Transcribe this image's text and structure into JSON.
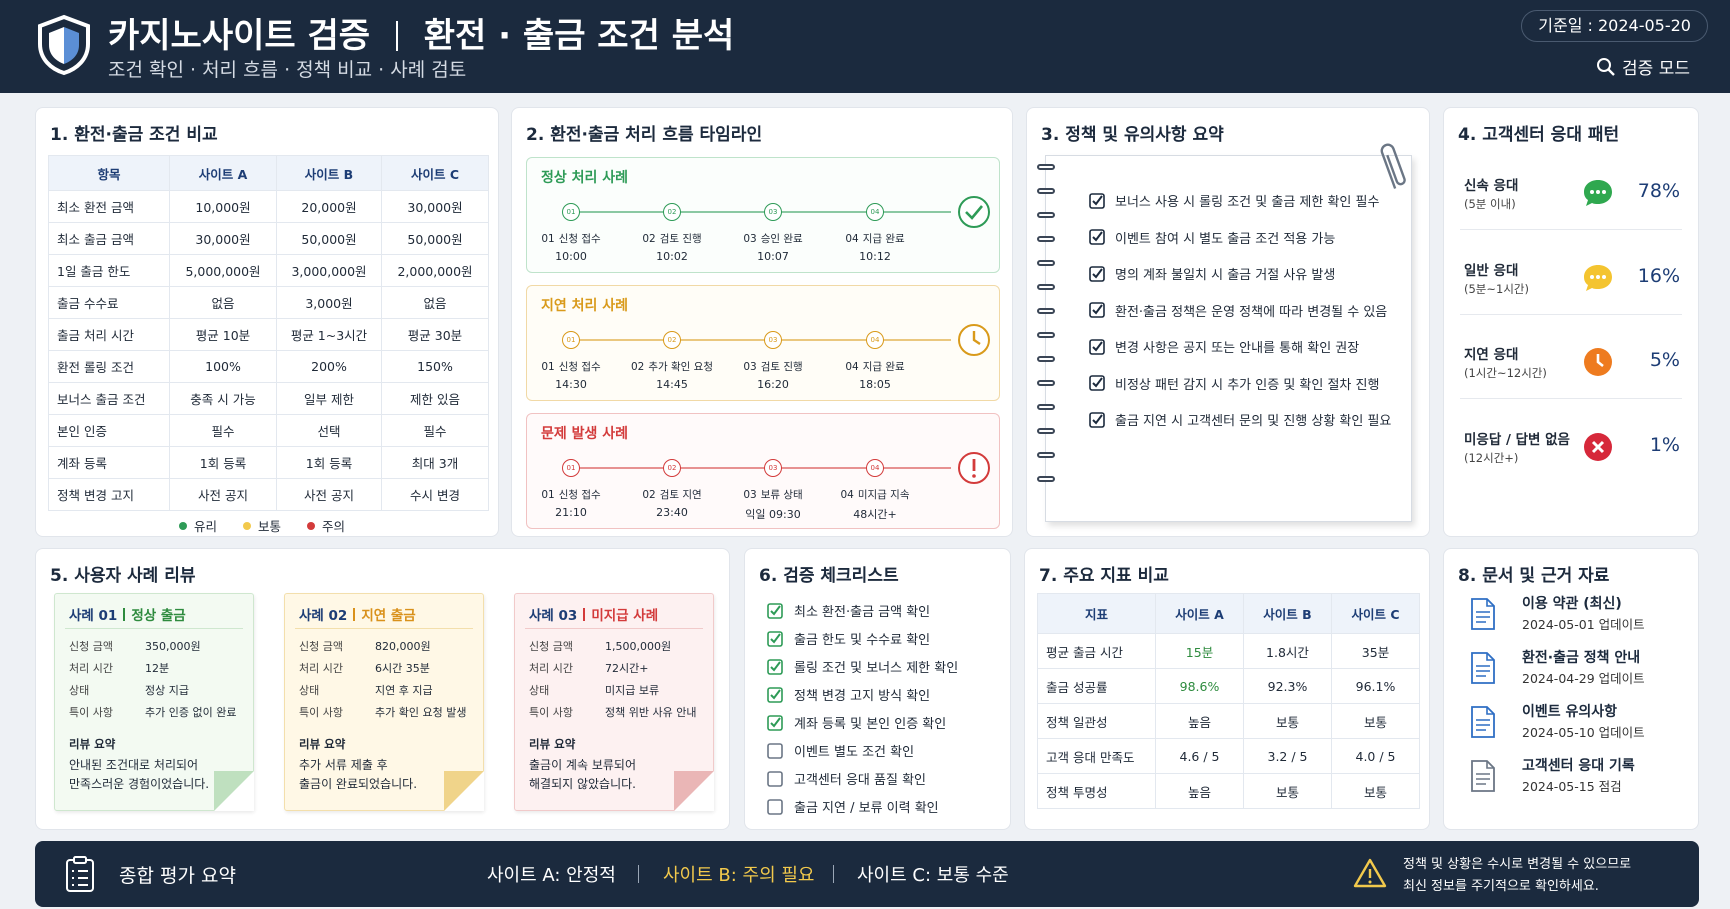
{
  "header": {
    "title": "카지노사이트 검증",
    "title2": "환전 · 출금 조건 분석",
    "subtitle": "조건 확인 · 처리 흐름 · 정책 비교 · 사례 검토",
    "date": "기준일 : 2024-05-20",
    "mode": "검증 모드"
  },
  "panel1": {
    "title": "1. 환전·출금 조건 비교",
    "table": {
      "header": [
        "항목",
        "사이트 A",
        "사이트 B",
        "사이트 C"
      ],
      "rows": [
        [
          "최소 환전 금액",
          "10,000원",
          "20,000원",
          "30,000원"
        ],
        [
          "최소 출금 금액",
          "30,000원",
          "50,000원",
          "50,000원"
        ],
        [
          "1일 출금 한도",
          "5,000,000원",
          "3,000,000원",
          "2,000,000원"
        ],
        [
          "출금 수수료",
          "없음",
          "3,000원",
          "없음"
        ],
        [
          "출금 처리 시간",
          "평균 10분",
          "평균 1~3시간",
          "평균 30분"
        ],
        [
          "환전 롤링 조건",
          "100%",
          "200%",
          "150%"
        ],
        [
          "보너스 출금 조건",
          "충족 시 가능",
          "일부 제한",
          "제한 있음"
        ],
        [
          "본인 인증",
          "필수",
          "선택",
          "필수"
        ],
        [
          "계좌 등록",
          "1회 등록",
          "1회 등록",
          "최대 3개"
        ],
        [
          "정책 변경 고지",
          "사전 공지",
          "사전 공지",
          "수시 변경"
        ]
      ]
    },
    "legend": [
      {
        "label": "유리",
        "color": "#2e9b57"
      },
      {
        "label": "보통",
        "color": "#f2c94c"
      },
      {
        "label": "주의",
        "color": "#d33b3b"
      }
    ]
  },
  "panel2": {
    "title": "2. 환전·출금 처리 흐름 타임라인",
    "cases": [
      {
        "title": "정상 처리 사례",
        "steps": [
          {
            "num": "01",
            "label": "신청 접수",
            "time": "10:00"
          },
          {
            "num": "02",
            "label": "검토 진행",
            "time": "10:02"
          },
          {
            "num": "03",
            "label": "승인 완료",
            "time": "10:07"
          },
          {
            "num": "04",
            "label": "지급 완료",
            "time": "10:12"
          }
        ]
      },
      {
        "title": "지연 처리 사례",
        "steps": [
          {
            "num": "01",
            "label": "신청 접수",
            "time": "14:30"
          },
          {
            "num": "02",
            "label": "추가 확인 요청",
            "time": "14:45"
          },
          {
            "num": "03",
            "label": "검토 진행",
            "time": "16:20"
          },
          {
            "num": "04",
            "label": "지급 완료",
            "time": "18:05"
          }
        ]
      },
      {
        "title": "문제 발생 사례",
        "steps": [
          {
            "num": "01",
            "label": "신청 접수",
            "time": "21:10"
          },
          {
            "num": "02",
            "label": "검토 지연",
            "time": "23:40"
          },
          {
            "num": "03",
            "label": "보류 상태",
            "time": "익일 09:30"
          },
          {
            "num": "04",
            "label": "미지급 지속",
            "time": "48시간+"
          }
        ]
      }
    ]
  },
  "panel3": {
    "title": "3. 정책 및 유의사항 요약",
    "items": [
      "보너스 사용 시 롤링 조건 및 출금 제한 확인 필수",
      "이벤트 참여 시 별도 출금 조건 적용 가능",
      "명의 계좌 불일치 시 출금 거절 사유 발생",
      "환전·출금 정책은 운영 정책에 따라 변경될 수 있음",
      "변경 사항은 공지 또는 안내를 통해 확인 권장",
      "비정상 패턴 감지 시 추가 인증 및 확인 절차 진행",
      "출금 지연 시 고객센터 문의 및 진행 상황 확인 필요"
    ]
  },
  "panel4": {
    "title": "4. 고객센터 응대 패턴",
    "items": [
      {
        "label": "신속 응대",
        "sub": "(5분 이내)",
        "pct": "78%"
      },
      {
        "label": "일반 응대",
        "sub": "(5분~1시간)",
        "pct": "16%"
      },
      {
        "label": "지연 응대",
        "sub": "(1시간~12시간)",
        "pct": "5%"
      },
      {
        "label": "미응답 / 답변 없음",
        "sub": "(12시간+)",
        "pct": "1%"
      }
    ]
  },
  "panel5": {
    "title": "5. 사용자 사례 리뷰",
    "field_labels": [
      "신청 금액",
      "처리 시간",
      "상태",
      "특이 사항"
    ],
    "review_label": "리뷰 요약",
    "cases": [
      {
        "title": "사례 01",
        "tag": "정상 출금",
        "values": [
          "350,000원",
          "12분",
          "정상 지급",
          "추가 인증 없이 완료"
        ],
        "review": [
          "안내된 조건대로 처리되어",
          "만족스러운 경험이었습니다."
        ]
      },
      {
        "title": "사례 02",
        "tag": "지연 출금",
        "values": [
          "820,000원",
          "6시간 35분",
          "지연 후 지급",
          "추가 확인 요청 발생"
        ],
        "review": [
          "추가 서류 제출 후",
          "출금이 완료되었습니다."
        ]
      },
      {
        "title": "사례 03",
        "tag": "미지급 사례",
        "values": [
          "1,500,000원",
          "72시간+",
          "미지급 보류",
          "정책 위반 사유 안내"
        ],
        "review": [
          "출금이 계속 보류되어",
          "해결되지 않았습니다."
        ]
      }
    ]
  },
  "panel6": {
    "title": "6. 검증 체크리스트",
    "items": [
      {
        "label": "최소 환전·출금 금액 확인",
        "checked": true
      },
      {
        "label": "출금 한도 및 수수료 확인",
        "checked": true
      },
      {
        "label": "롤링 조건 및 보너스 제한 확인",
        "checked": true
      },
      {
        "label": "정책 변경 고지 방식 확인",
        "checked": true
      },
      {
        "label": "계좌 등록 및 본인 인증 확인",
        "checked": true
      },
      {
        "label": "이벤트 별도 조건 확인",
        "checked": false
      },
      {
        "label": "고객센터 응대 품질 확인",
        "checked": false
      },
      {
        "label": "출금 지연 / 보류 이력 확인",
        "checked": false
      }
    ]
  },
  "panel7": {
    "title": "7. 주요 지표 비교",
    "table": {
      "header": [
        "지표",
        "사이트 A",
        "사이트 B",
        "사이트 C"
      ],
      "rows": [
        [
          "평균 출금 시간",
          "15분",
          "1.8시간",
          "35분"
        ],
        [
          "출금 성공률",
          "98.6%",
          "92.3%",
          "96.1%"
        ],
        [
          "정책 일관성",
          "높음",
          "보통",
          "보통"
        ],
        [
          "고객 응대 만족도",
          "4.6 / 5",
          "3.2 / 5",
          "4.0 / 5"
        ],
        [
          "정책 투명성",
          "높음",
          "보통",
          "보통"
        ]
      ]
    }
  },
  "panel8": {
    "title": "8. 문서 및 근거 자료",
    "docs": [
      {
        "title": "이용 약관 (최신)",
        "date": "2024-05-01 업데이트"
      },
      {
        "title": "환전·출금 정책 안내",
        "date": "2024-04-29 업데이트"
      },
      {
        "title": "이벤트 유의사항",
        "date": "2024-05-10 업데이트"
      },
      {
        "title": "고객센터 응대 기록",
        "date": "2024-05-15 점검"
      }
    ]
  },
  "footer": {
    "label": "종합 평가 요약",
    "sites": [
      "사이트 A: 안정적",
      "사이트 B: 주의 필요",
      "사이트 C: 보통 수준"
    ],
    "note": [
      "정책 및 상황은 수시로 변경될 수 있으므로",
      "최신 정보를 주기적으로 확인하세요."
    ]
  }
}
